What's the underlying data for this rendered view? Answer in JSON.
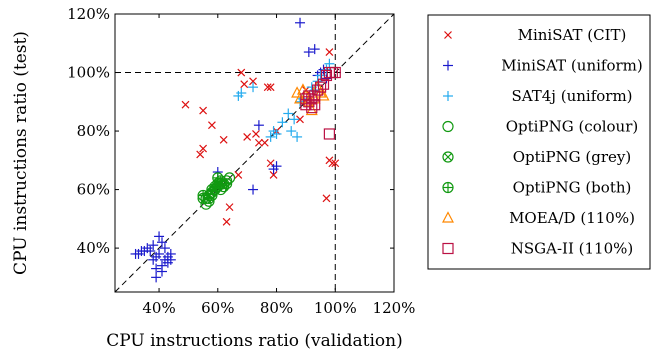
{
  "chart_data": {
    "type": "scatter",
    "xlabel": "CPU instructions ratio (validation)",
    "ylabel": "CPU instructions ratio (test)",
    "xlim": [
      25,
      120
    ],
    "ylim": [
      25,
      120
    ],
    "xticks": [
      {
        "v": 40,
        "label": "40%"
      },
      {
        "v": 60,
        "label": "60%"
      },
      {
        "v": 80,
        "label": "80%"
      },
      {
        "v": 100,
        "label": "100%"
      },
      {
        "v": 120,
        "label": "120%"
      }
    ],
    "yticks": [
      {
        "v": 40,
        "label": "40%"
      },
      {
        "v": 60,
        "label": "60%"
      },
      {
        "v": 80,
        "label": "80%"
      },
      {
        "v": 100,
        "label": "100%"
      },
      {
        "v": 120,
        "label": "120%"
      }
    ],
    "reference_lines": {
      "diagonal": true,
      "x": 100,
      "y": 100
    },
    "legend_position": "right",
    "series": [
      {
        "name": "MiniSAT (CIT)",
        "marker": "x",
        "color": "#dd1111",
        "points": [
          [
            49,
            89
          ],
          [
            55,
            87
          ],
          [
            55,
            74
          ],
          [
            54,
            72
          ],
          [
            58,
            82
          ],
          [
            62,
            77
          ],
          [
            63,
            49
          ],
          [
            64,
            54
          ],
          [
            67,
            65
          ],
          [
            68,
            100
          ],
          [
            69,
            96
          ],
          [
            70,
            78
          ],
          [
            72,
            97
          ],
          [
            73,
            79
          ],
          [
            74,
            76
          ],
          [
            76,
            76
          ],
          [
            77,
            95
          ],
          [
            78,
            95
          ],
          [
            78,
            69
          ],
          [
            79,
            65
          ],
          [
            80,
            80
          ],
          [
            88,
            84
          ],
          [
            90,
            94
          ],
          [
            97,
            57
          ],
          [
            98,
            70
          ],
          [
            99,
            69
          ],
          [
            100,
            69
          ],
          [
            98,
            107
          ]
        ]
      },
      {
        "name": "MiniSAT (uniform)",
        "marker": "+",
        "color": "#1a1acc",
        "points": [
          [
            32,
            38
          ],
          [
            33,
            38
          ],
          [
            34,
            39
          ],
          [
            35,
            39
          ],
          [
            36,
            40
          ],
          [
            37,
            39
          ],
          [
            38,
            41
          ],
          [
            38,
            36
          ],
          [
            39,
            33
          ],
          [
            39,
            30
          ],
          [
            39,
            37
          ],
          [
            40,
            38
          ],
          [
            40,
            44
          ],
          [
            41,
            42
          ],
          [
            41,
            34
          ],
          [
            41,
            32
          ],
          [
            42,
            36
          ],
          [
            42,
            40
          ],
          [
            43,
            37
          ],
          [
            43,
            35
          ],
          [
            44,
            38
          ],
          [
            44,
            36
          ],
          [
            60,
            66
          ],
          [
            72,
            60
          ],
          [
            74,
            82
          ],
          [
            79,
            67
          ],
          [
            80,
            68
          ],
          [
            88,
            117
          ],
          [
            91,
            107
          ],
          [
            93,
            108
          ],
          [
            94,
            99
          ],
          [
            95,
            100
          ],
          [
            96,
            101
          ],
          [
            97,
            98
          ]
        ]
      },
      {
        "name": "SAT4j (uniform)",
        "marker": "+",
        "color": "#22aaee",
        "points": [
          [
            67,
            92
          ],
          [
            68,
            93
          ],
          [
            72,
            95
          ],
          [
            78,
            78
          ],
          [
            79,
            80
          ],
          [
            80,
            79
          ],
          [
            82,
            83
          ],
          [
            84,
            86
          ],
          [
            85,
            80
          ],
          [
            86,
            84
          ],
          [
            87,
            78
          ],
          [
            88,
            90
          ],
          [
            89,
            91
          ],
          [
            92,
            95
          ],
          [
            93,
            94
          ],
          [
            94,
            97
          ],
          [
            95,
            99
          ],
          [
            97,
            101
          ],
          [
            98,
            103
          ]
        ]
      },
      {
        "name": "OptiPNG (colour)",
        "marker": "circle",
        "color": "#119911",
        "points": [
          [
            55,
            57
          ],
          [
            56,
            55
          ],
          [
            57,
            56
          ],
          [
            58,
            58
          ],
          [
            59,
            60
          ],
          [
            60,
            61
          ],
          [
            61,
            60
          ],
          [
            62,
            62
          ],
          [
            63,
            63
          ],
          [
            64,
            64
          ]
        ]
      },
      {
        "name": "OptiPNG (grey)",
        "marker": "otimes",
        "color": "#119911",
        "points": [
          [
            56,
            57
          ],
          [
            57,
            58
          ],
          [
            58,
            59
          ],
          [
            59,
            60
          ],
          [
            60,
            62
          ],
          [
            61,
            62
          ],
          [
            62,
            61
          ]
        ]
      },
      {
        "name": "OptiPNG (both)",
        "marker": "oplus",
        "color": "#119911",
        "points": [
          [
            55,
            58
          ],
          [
            57,
            57
          ],
          [
            58,
            60
          ],
          [
            59,
            61
          ],
          [
            60,
            64
          ],
          [
            61,
            63
          ],
          [
            63,
            62
          ]
        ]
      },
      {
        "name": "MOEA/D (110%)",
        "marker": "triangle",
        "color": "#ff8800",
        "points": [
          [
            87,
            93
          ],
          [
            88,
            91
          ],
          [
            89,
            94
          ],
          [
            90,
            92
          ],
          [
            91,
            90
          ],
          [
            92,
            87
          ],
          [
            93,
            91
          ],
          [
            94,
            95
          ],
          [
            95,
            93
          ],
          [
            96,
            92
          ]
        ]
      },
      {
        "name": "NSGA-II (110%)",
        "marker": "square",
        "color": "#bb1144",
        "points": [
          [
            90,
            89
          ],
          [
            90,
            91
          ],
          [
            91,
            90
          ],
          [
            91,
            92
          ],
          [
            92,
            88
          ],
          [
            92,
            91
          ],
          [
            93,
            89
          ],
          [
            93,
            92
          ],
          [
            94,
            94
          ],
          [
            95,
            95
          ],
          [
            96,
            96
          ],
          [
            97,
            99
          ],
          [
            98,
            100
          ],
          [
            99,
            100
          ],
          [
            100,
            100
          ],
          [
            98,
            79
          ]
        ]
      }
    ]
  }
}
